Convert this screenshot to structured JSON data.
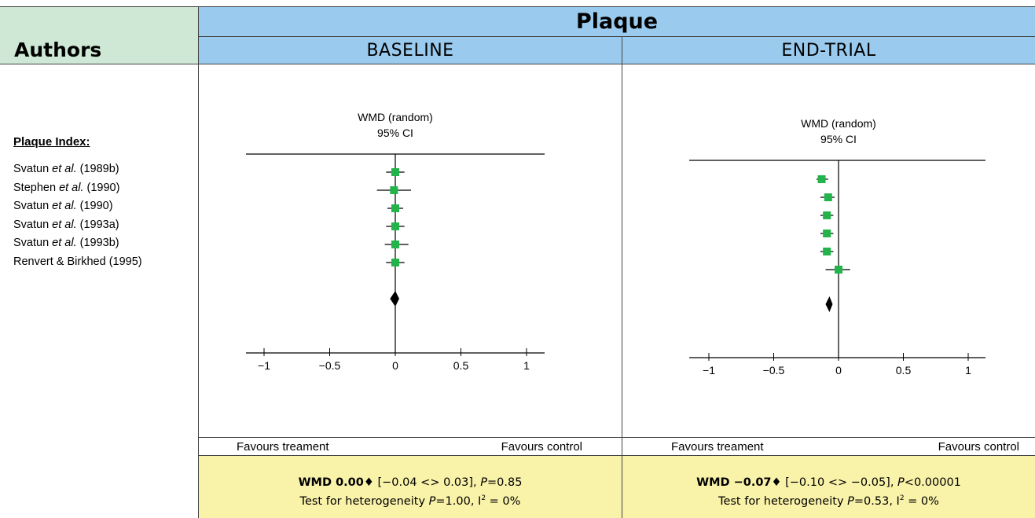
{
  "header": {
    "authors_label": "Authors",
    "title": "Plaque",
    "baseline_label": "BASELINE",
    "endtrial_label": "END-TRIAL"
  },
  "authors": {
    "section_title": "Plaque Index:",
    "items": [
      {
        "name": "Svatun ",
        "etal": "et al.",
        "year": " (1989b)"
      },
      {
        "name": "Stephen ",
        "etal": "et al.",
        "year": " (1990)"
      },
      {
        "name": "Svatun ",
        "etal": "et al.",
        "year": " (1990)"
      },
      {
        "name": "Svatun ",
        "etal": "et al.",
        "year": " (1993a)"
      },
      {
        "name": "Svatun ",
        "etal": "et al.",
        "year": " (1993b)"
      },
      {
        "name": "Renvert & Birkhed (1995)",
        "etal": "",
        "year": ""
      }
    ]
  },
  "favours": {
    "left": "Favours treament",
    "right": "Favours control"
  },
  "summaries": {
    "baseline": {
      "wmd_label": "WMD 0.00♦",
      "ci": " [−0.04 <> 0.03], ",
      "p_label": "P",
      "p_value": "=0.85",
      "het_text": "Test for heterogeneity ",
      "het_p_label": "P",
      "het_p_value": "=1.00, ",
      "i2_label": "I",
      "i2_sup": "2",
      "i2_value": " = 0%"
    },
    "endtrial": {
      "wmd_label": "WMD −0.07♦",
      "ci": " [−0.10 <> −0.05], ",
      "p_label": "P",
      "p_value": "<0.00001",
      "het_text": "Test for heterogeneity ",
      "het_p_label": "P",
      "het_p_value": "=0.53, ",
      "i2_label": "I",
      "i2_sup": "2",
      "i2_value": " = 0%"
    }
  },
  "chart_data": [
    {
      "type": "scatter",
      "title": "WMD (random)",
      "subtitle": "95% CI",
      "xlim": [
        -1,
        1
      ],
      "ticks": [
        -1,
        -0.5,
        0,
        0.5,
        1
      ],
      "tick_labels": [
        "−1",
        "−0.5",
        "0",
        "0.5",
        "1"
      ],
      "studies": [
        {
          "wmd": 0.0,
          "ci": [
            -0.07,
            0.07
          ]
        },
        {
          "wmd": -0.01,
          "ci": [
            -0.14,
            0.12
          ]
        },
        {
          "wmd": 0.0,
          "ci": [
            -0.06,
            0.06
          ]
        },
        {
          "wmd": 0.0,
          "ci": [
            -0.07,
            0.07
          ]
        },
        {
          "wmd": 0.0,
          "ci": [
            -0.08,
            0.1
          ]
        },
        {
          "wmd": 0.0,
          "ci": [
            -0.07,
            0.07
          ]
        }
      ],
      "pooled": {
        "wmd": 0.0,
        "ci": [
          -0.04,
          0.03
        ]
      },
      "marker_color": "#22b34a"
    },
    {
      "type": "scatter",
      "title": "WMD (random)",
      "subtitle": "95% CI",
      "xlim": [
        -1,
        1
      ],
      "ticks": [
        -1,
        -0.5,
        0,
        0.5,
        1
      ],
      "tick_labels": [
        "−1",
        "−0.5",
        "0",
        "0.5",
        "1"
      ],
      "studies": [
        {
          "wmd": -0.13,
          "ci": [
            -0.17,
            -0.08
          ]
        },
        {
          "wmd": -0.08,
          "ci": [
            -0.14,
            -0.03
          ]
        },
        {
          "wmd": -0.09,
          "ci": [
            -0.14,
            -0.04
          ]
        },
        {
          "wmd": -0.09,
          "ci": [
            -0.14,
            -0.04
          ]
        },
        {
          "wmd": -0.09,
          "ci": [
            -0.14,
            -0.04
          ]
        },
        {
          "wmd": 0.0,
          "ci": [
            -0.1,
            0.09
          ]
        }
      ],
      "pooled": {
        "wmd": -0.07,
        "ci": [
          -0.1,
          -0.05
        ]
      },
      "marker_color": "#22b34a"
    }
  ]
}
